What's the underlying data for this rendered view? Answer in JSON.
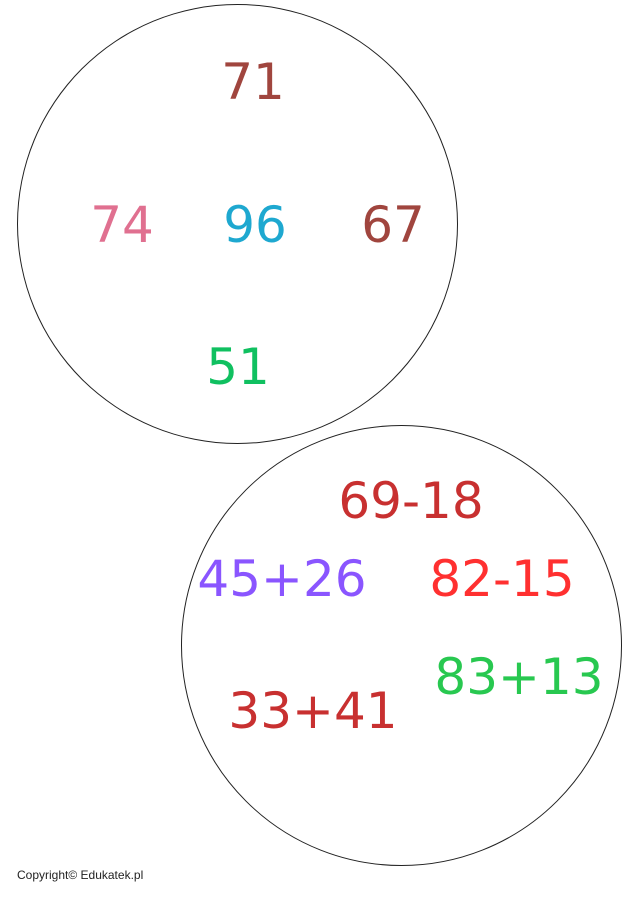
{
  "results_circle": {
    "items": [
      {
        "text": "71",
        "color": "#a0453e"
      },
      {
        "text": "74",
        "color": "#e07090"
      },
      {
        "text": "96",
        "color": "#1ea8d0"
      },
      {
        "text": "67",
        "color": "#a0453e"
      },
      {
        "text": "51",
        "color": "#10c060"
      }
    ]
  },
  "expressions_circle": {
    "items": [
      {
        "text": "69-18",
        "color": "#c83030"
      },
      {
        "text": "45+26",
        "color": "#8a55ff"
      },
      {
        "text": "82-15",
        "color": "#ff3030"
      },
      {
        "text": "83+13",
        "color": "#28c850"
      },
      {
        "text": "33+41",
        "color": "#c83030"
      }
    ]
  },
  "footer": {
    "copyright": "Copyright© Edukatek.pl"
  }
}
